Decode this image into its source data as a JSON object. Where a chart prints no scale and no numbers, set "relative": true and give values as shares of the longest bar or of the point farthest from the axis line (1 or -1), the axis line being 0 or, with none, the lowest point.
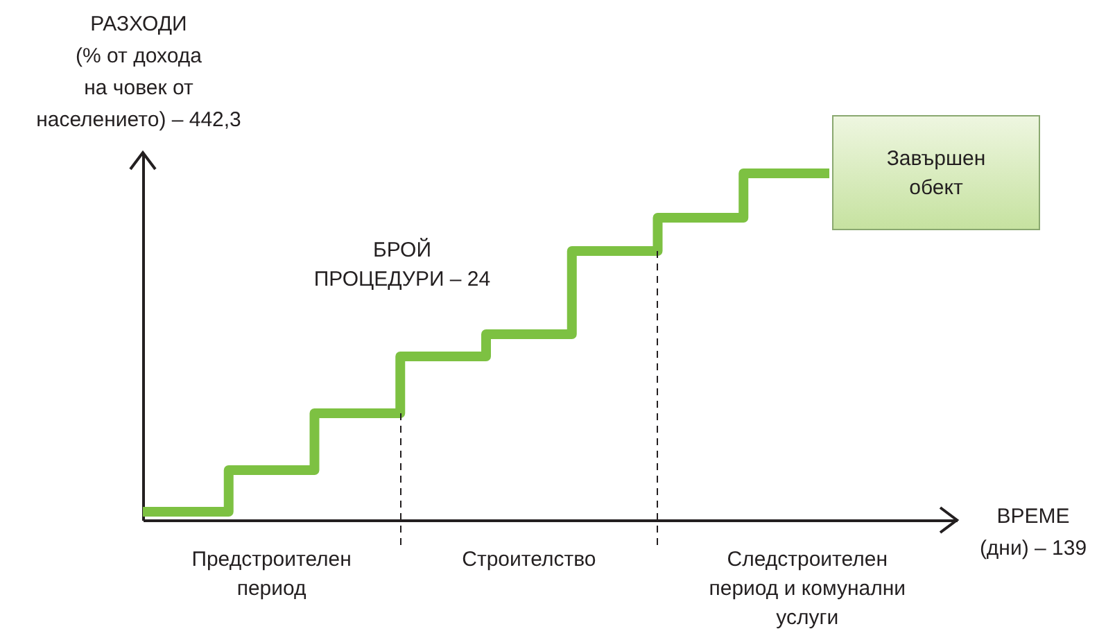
{
  "chart_data": {
    "type": "step",
    "relative": true,
    "ylabel": "РАЗХОДИ\n(% от дохода\nна човек от\nнаселението) – 442,3",
    "categories": [
      null,
      null,
      null,
      null,
      null,
      null,
      null,
      null,
      null
    ],
    "series": [
      {
        "color": "#7dc142",
        "values": [
          0.024,
          0.144,
          0.308,
          0.472,
          0.536,
          0.776,
          0.872,
          1,
          1
        ]
      }
    ],
    "annotations": [
      "Предстроителен\nпериод",
      "Строителство",
      "Следстроителен\nпериод и комунални\nуслуги",
      "БРОЙ\nПРОЦЕДУРИ – 24",
      "Завършен\nобект",
      "ВРЕМЕ\n(дни) – 139"
    ]
  }
}
